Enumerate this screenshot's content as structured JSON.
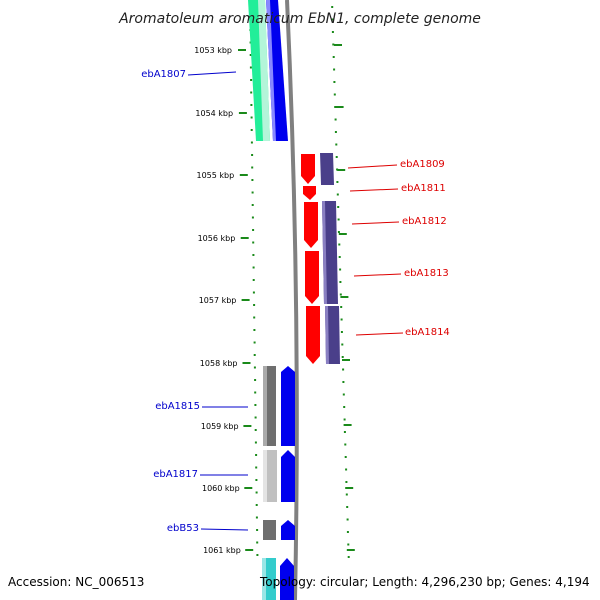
{
  "title": "Aromatoleum aromaticum EbN1, complete genome",
  "footer": {
    "accession": "Accession: NC_006513",
    "summary": "Topology: circular; Length: 4,296,230 bp; Genes: 4,194"
  },
  "scale": {
    "labels": [
      "1053 kbp",
      "1054 kbp",
      "1055 kbp",
      "1056 kbp",
      "1057 kbp",
      "1058 kbp",
      "1059 kbp",
      "1060 kbp",
      "1061 kbp"
    ]
  },
  "colors": {
    "tick": "#1a8a1a",
    "backbone": "#808080",
    "left_label": "#0000cc",
    "right_label": "#dd0000",
    "strand_blue": "#0000ee",
    "red_gene": "#ff0000",
    "purple_gene": "#4a3f8a",
    "gray_gene": "#6e6e6e",
    "light_gray_gene": "#c0c0c0",
    "cyan_gene": "#33cccc",
    "green_gene": "#22ee99"
  },
  "genes": {
    "left": [
      {
        "label": "ebA1807"
      },
      {
        "label": "ebA1815"
      },
      {
        "label": "ebA1817"
      },
      {
        "label": "ebB53"
      }
    ],
    "right": [
      {
        "label": "ebA1809"
      },
      {
        "label": "ebA1811"
      },
      {
        "label": "ebA1812"
      },
      {
        "label": "ebA1813"
      },
      {
        "label": "ebA1814"
      }
    ]
  }
}
